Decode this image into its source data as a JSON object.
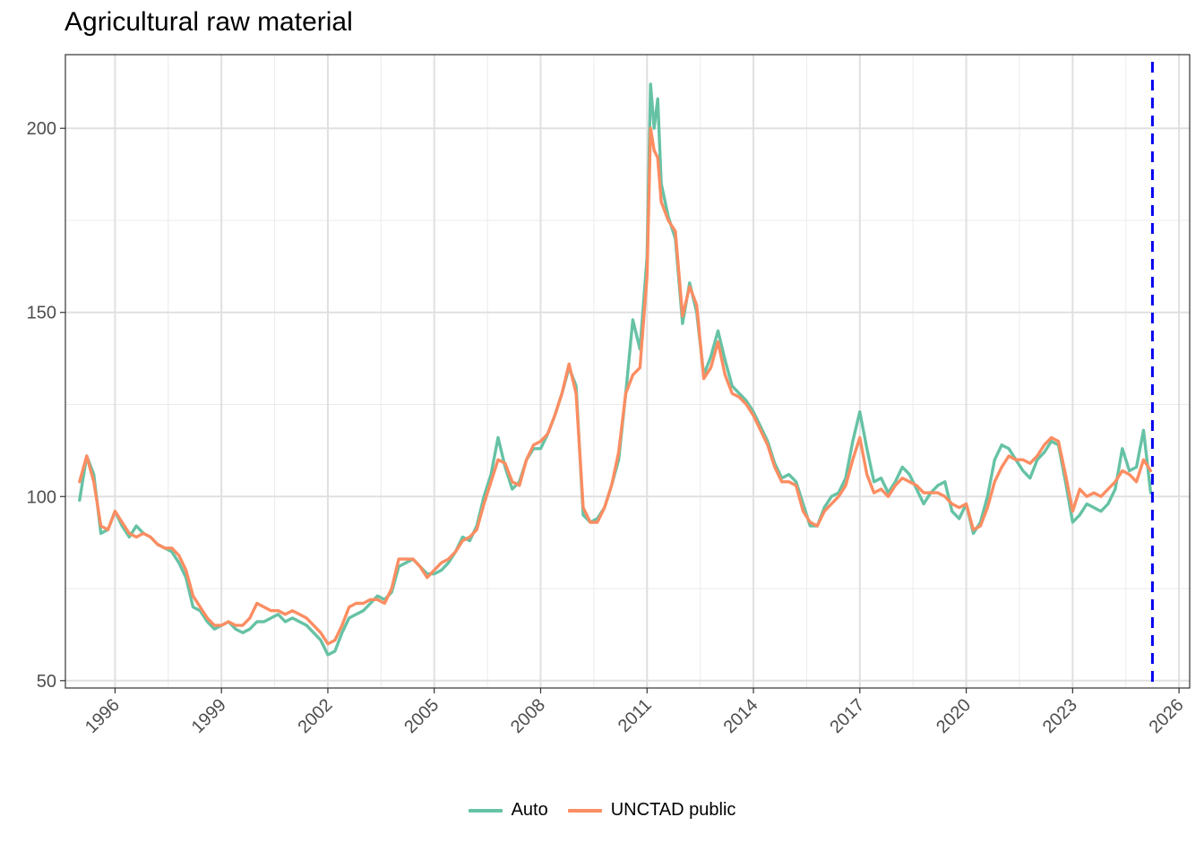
{
  "chart_data": {
    "type": "line",
    "title": "Agricultural raw material",
    "xlabel": "",
    "ylabel": "",
    "xlim": [
      1994.6,
      2026.3
    ],
    "ylim": [
      48,
      220
    ],
    "x_ticks": [
      1996,
      1999,
      2002,
      2005,
      2008,
      2011,
      2014,
      2017,
      2020,
      2023,
      2026
    ],
    "y_ticks": [
      50,
      100,
      150,
      200
    ],
    "grid": true,
    "legend_position": "bottom",
    "vline": {
      "x": 2025.25,
      "style": "dashed",
      "color": "#0000ee"
    },
    "series": [
      {
        "name": "Auto",
        "color": "#66c2a5",
        "points": [
          [
            1995.0,
            99
          ],
          [
            1995.2,
            111
          ],
          [
            1995.4,
            106
          ],
          [
            1995.6,
            90
          ],
          [
            1995.8,
            91
          ],
          [
            1996.0,
            96
          ],
          [
            1996.2,
            92
          ],
          [
            1996.4,
            89
          ],
          [
            1996.6,
            92
          ],
          [
            1996.8,
            90
          ],
          [
            1997.0,
            89
          ],
          [
            1997.2,
            87
          ],
          [
            1997.4,
            86
          ],
          [
            1997.6,
            85
          ],
          [
            1997.8,
            82
          ],
          [
            1998.0,
            78
          ],
          [
            1998.2,
            70
          ],
          [
            1998.4,
            69
          ],
          [
            1998.6,
            66
          ],
          [
            1998.8,
            64
          ],
          [
            1999.0,
            65
          ],
          [
            1999.2,
            66
          ],
          [
            1999.4,
            64
          ],
          [
            1999.6,
            63
          ],
          [
            1999.8,
            64
          ],
          [
            2000.0,
            66
          ],
          [
            2000.2,
            66
          ],
          [
            2000.4,
            67
          ],
          [
            2000.6,
            68
          ],
          [
            2000.8,
            66
          ],
          [
            2001.0,
            67
          ],
          [
            2001.2,
            66
          ],
          [
            2001.4,
            65
          ],
          [
            2001.6,
            63
          ],
          [
            2001.8,
            61
          ],
          [
            2002.0,
            57
          ],
          [
            2002.2,
            58
          ],
          [
            2002.4,
            63
          ],
          [
            2002.6,
            67
          ],
          [
            2002.8,
            68
          ],
          [
            2003.0,
            69
          ],
          [
            2003.2,
            71
          ],
          [
            2003.4,
            73
          ],
          [
            2003.6,
            72
          ],
          [
            2003.8,
            74
          ],
          [
            2004.0,
            81
          ],
          [
            2004.2,
            82
          ],
          [
            2004.4,
            83
          ],
          [
            2004.6,
            81
          ],
          [
            2004.8,
            79
          ],
          [
            2005.0,
            79
          ],
          [
            2005.2,
            80
          ],
          [
            2005.4,
            82
          ],
          [
            2005.6,
            85
          ],
          [
            2005.8,
            89
          ],
          [
            2006.0,
            88
          ],
          [
            2006.2,
            92
          ],
          [
            2006.4,
            100
          ],
          [
            2006.6,
            106
          ],
          [
            2006.8,
            116
          ],
          [
            2007.0,
            108
          ],
          [
            2007.2,
            102
          ],
          [
            2007.4,
            104
          ],
          [
            2007.6,
            110
          ],
          [
            2007.8,
            113
          ],
          [
            2008.0,
            113
          ],
          [
            2008.2,
            117
          ],
          [
            2008.4,
            122
          ],
          [
            2008.6,
            128
          ],
          [
            2008.8,
            135
          ],
          [
            2009.0,
            130
          ],
          [
            2009.2,
            95
          ],
          [
            2009.4,
            93
          ],
          [
            2009.6,
            94
          ],
          [
            2009.8,
            97
          ],
          [
            2010.0,
            103
          ],
          [
            2010.2,
            110
          ],
          [
            2010.4,
            128
          ],
          [
            2010.6,
            148
          ],
          [
            2010.8,
            140
          ],
          [
            2011.0,
            165
          ],
          [
            2011.1,
            212
          ],
          [
            2011.2,
            200
          ],
          [
            2011.3,
            208
          ],
          [
            2011.4,
            185
          ],
          [
            2011.6,
            176
          ],
          [
            2011.8,
            170
          ],
          [
            2012.0,
            147
          ],
          [
            2012.2,
            158
          ],
          [
            2012.4,
            150
          ],
          [
            2012.6,
            133
          ],
          [
            2012.8,
            138
          ],
          [
            2013.0,
            145
          ],
          [
            2013.2,
            137
          ],
          [
            2013.4,
            130
          ],
          [
            2013.6,
            128
          ],
          [
            2013.8,
            126
          ],
          [
            2014.0,
            123
          ],
          [
            2014.2,
            119
          ],
          [
            2014.4,
            115
          ],
          [
            2014.6,
            109
          ],
          [
            2014.8,
            105
          ],
          [
            2015.0,
            106
          ],
          [
            2015.2,
            104
          ],
          [
            2015.4,
            98
          ],
          [
            2015.6,
            92
          ],
          [
            2015.8,
            92
          ],
          [
            2016.0,
            97
          ],
          [
            2016.2,
            100
          ],
          [
            2016.4,
            101
          ],
          [
            2016.6,
            105
          ],
          [
            2016.8,
            115
          ],
          [
            2017.0,
            123
          ],
          [
            2017.2,
            113
          ],
          [
            2017.4,
            104
          ],
          [
            2017.6,
            105
          ],
          [
            2017.8,
            101
          ],
          [
            2018.0,
            104
          ],
          [
            2018.2,
            108
          ],
          [
            2018.4,
            106
          ],
          [
            2018.6,
            102
          ],
          [
            2018.8,
            98
          ],
          [
            2019.0,
            101
          ],
          [
            2019.2,
            103
          ],
          [
            2019.4,
            104
          ],
          [
            2019.6,
            96
          ],
          [
            2019.8,
            94
          ],
          [
            2020.0,
            98
          ],
          [
            2020.2,
            90
          ],
          [
            2020.4,
            93
          ],
          [
            2020.6,
            100
          ],
          [
            2020.8,
            110
          ],
          [
            2021.0,
            114
          ],
          [
            2021.2,
            113
          ],
          [
            2021.4,
            110
          ],
          [
            2021.6,
            107
          ],
          [
            2021.8,
            105
          ],
          [
            2022.0,
            110
          ],
          [
            2022.2,
            112
          ],
          [
            2022.4,
            115
          ],
          [
            2022.6,
            114
          ],
          [
            2022.8,
            104
          ],
          [
            2023.0,
            93
          ],
          [
            2023.2,
            95
          ],
          [
            2023.4,
            98
          ],
          [
            2023.6,
            97
          ],
          [
            2023.8,
            96
          ],
          [
            2024.0,
            98
          ],
          [
            2024.2,
            102
          ],
          [
            2024.4,
            113
          ],
          [
            2024.6,
            107
          ],
          [
            2024.8,
            108
          ],
          [
            2025.0,
            118
          ],
          [
            2025.2,
            101
          ]
        ]
      },
      {
        "name": "UNCTAD public",
        "color": "#fc8d62",
        "points": [
          [
            1995.0,
            104
          ],
          [
            1995.2,
            111
          ],
          [
            1995.4,
            104
          ],
          [
            1995.6,
            92
          ],
          [
            1995.8,
            91
          ],
          [
            1996.0,
            96
          ],
          [
            1996.2,
            93
          ],
          [
            1996.4,
            90
          ],
          [
            1996.6,
            89
          ],
          [
            1996.8,
            90
          ],
          [
            1997.0,
            89
          ],
          [
            1997.2,
            87
          ],
          [
            1997.4,
            86
          ],
          [
            1997.6,
            86
          ],
          [
            1997.8,
            84
          ],
          [
            1998.0,
            80
          ],
          [
            1998.2,
            73
          ],
          [
            1998.4,
            70
          ],
          [
            1998.6,
            67
          ],
          [
            1998.8,
            65
          ],
          [
            1999.0,
            65
          ],
          [
            1999.2,
            66
          ],
          [
            1999.4,
            65
          ],
          [
            1999.6,
            65
          ],
          [
            1999.8,
            67
          ],
          [
            2000.0,
            71
          ],
          [
            2000.2,
            70
          ],
          [
            2000.4,
            69
          ],
          [
            2000.6,
            69
          ],
          [
            2000.8,
            68
          ],
          [
            2001.0,
            69
          ],
          [
            2001.2,
            68
          ],
          [
            2001.4,
            67
          ],
          [
            2001.6,
            65
          ],
          [
            2001.8,
            63
          ],
          [
            2002.0,
            60
          ],
          [
            2002.2,
            61
          ],
          [
            2002.4,
            65
          ],
          [
            2002.6,
            70
          ],
          [
            2002.8,
            71
          ],
          [
            2003.0,
            71
          ],
          [
            2003.2,
            72
          ],
          [
            2003.4,
            72
          ],
          [
            2003.6,
            71
          ],
          [
            2003.8,
            75
          ],
          [
            2004.0,
            83
          ],
          [
            2004.2,
            83
          ],
          [
            2004.4,
            83
          ],
          [
            2004.6,
            81
          ],
          [
            2004.8,
            78
          ],
          [
            2005.0,
            80
          ],
          [
            2005.2,
            82
          ],
          [
            2005.4,
            83
          ],
          [
            2005.6,
            85
          ],
          [
            2005.8,
            88
          ],
          [
            2006.0,
            89
          ],
          [
            2006.2,
            91
          ],
          [
            2006.4,
            98
          ],
          [
            2006.6,
            104
          ],
          [
            2006.8,
            110
          ],
          [
            2007.0,
            109
          ],
          [
            2007.2,
            104
          ],
          [
            2007.4,
            103
          ],
          [
            2007.6,
            110
          ],
          [
            2007.8,
            114
          ],
          [
            2008.0,
            115
          ],
          [
            2008.2,
            117
          ],
          [
            2008.4,
            122
          ],
          [
            2008.6,
            128
          ],
          [
            2008.8,
            136
          ],
          [
            2009.0,
            128
          ],
          [
            2009.2,
            97
          ],
          [
            2009.4,
            93
          ],
          [
            2009.6,
            93
          ],
          [
            2009.8,
            97
          ],
          [
            2010.0,
            103
          ],
          [
            2010.2,
            112
          ],
          [
            2010.4,
            128
          ],
          [
            2010.6,
            133
          ],
          [
            2010.8,
            135
          ],
          [
            2011.0,
            160
          ],
          [
            2011.1,
            200
          ],
          [
            2011.2,
            194
          ],
          [
            2011.3,
            192
          ],
          [
            2011.4,
            180
          ],
          [
            2011.6,
            175
          ],
          [
            2011.8,
            172
          ],
          [
            2012.0,
            149
          ],
          [
            2012.2,
            157
          ],
          [
            2012.4,
            152
          ],
          [
            2012.6,
            132
          ],
          [
            2012.8,
            135
          ],
          [
            2013.0,
            142
          ],
          [
            2013.2,
            133
          ],
          [
            2013.4,
            128
          ],
          [
            2013.6,
            127
          ],
          [
            2013.8,
            125
          ],
          [
            2014.0,
            122
          ],
          [
            2014.2,
            118
          ],
          [
            2014.4,
            114
          ],
          [
            2014.6,
            108
          ],
          [
            2014.8,
            104
          ],
          [
            2015.0,
            104
          ],
          [
            2015.2,
            103
          ],
          [
            2015.4,
            96
          ],
          [
            2015.6,
            93
          ],
          [
            2015.8,
            92
          ],
          [
            2016.0,
            96
          ],
          [
            2016.2,
            98
          ],
          [
            2016.4,
            100
          ],
          [
            2016.6,
            103
          ],
          [
            2016.8,
            110
          ],
          [
            2017.0,
            116
          ],
          [
            2017.2,
            106
          ],
          [
            2017.4,
            101
          ],
          [
            2017.6,
            102
          ],
          [
            2017.8,
            100
          ],
          [
            2018.0,
            103
          ],
          [
            2018.2,
            105
          ],
          [
            2018.4,
            104
          ],
          [
            2018.6,
            103
          ],
          [
            2018.8,
            101
          ],
          [
            2019.0,
            101
          ],
          [
            2019.2,
            101
          ],
          [
            2019.4,
            100
          ],
          [
            2019.6,
            98
          ],
          [
            2019.8,
            97
          ],
          [
            2020.0,
            98
          ],
          [
            2020.2,
            91
          ],
          [
            2020.4,
            92
          ],
          [
            2020.6,
            97
          ],
          [
            2020.8,
            104
          ],
          [
            2021.0,
            108
          ],
          [
            2021.2,
            111
          ],
          [
            2021.4,
            110
          ],
          [
            2021.6,
            110
          ],
          [
            2021.8,
            109
          ],
          [
            2022.0,
            111
          ],
          [
            2022.2,
            114
          ],
          [
            2022.4,
            116
          ],
          [
            2022.6,
            115
          ],
          [
            2022.8,
            106
          ],
          [
            2023.0,
            96
          ],
          [
            2023.2,
            102
          ],
          [
            2023.4,
            100
          ],
          [
            2023.6,
            101
          ],
          [
            2023.8,
            100
          ],
          [
            2024.0,
            102
          ],
          [
            2024.2,
            104
          ],
          [
            2024.4,
            107
          ],
          [
            2024.6,
            106
          ],
          [
            2024.8,
            104
          ],
          [
            2025.0,
            110
          ],
          [
            2025.2,
            107
          ]
        ]
      }
    ]
  }
}
